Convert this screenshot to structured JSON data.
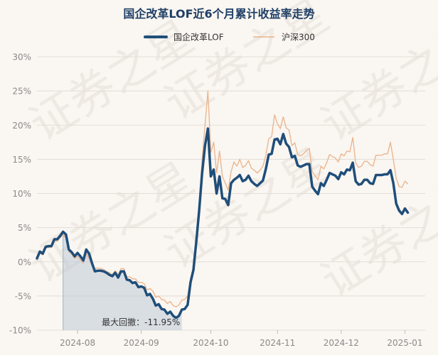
{
  "chart_data": {
    "type": "line",
    "title": "国企改革LOF近6个月累计收益率走势",
    "watermark": "证券之星",
    "ylim": [
      -10,
      30
    ],
    "yticks": [
      -10,
      -5,
      0,
      5,
      10,
      15,
      20,
      25,
      30
    ],
    "ytick_labels": [
      "-10%",
      "-5%",
      "0%",
      "5%",
      "10%",
      "15%",
      "20%",
      "25%",
      "30%"
    ],
    "xtick_labels": [
      "2024-08",
      "2024-09",
      "2024-10",
      "2024-11",
      "2024-12",
      "2025-01"
    ],
    "xtick_positions": [
      14,
      36,
      60,
      83,
      105,
      127
    ],
    "xlim": [
      0,
      134
    ],
    "legend_position": "top-center",
    "grid": true,
    "drawdown": {
      "label": "最大回撤：-11.95%",
      "start": 9,
      "end": 50
    },
    "series": [
      {
        "name": "国企改革LOF",
        "color": "#1f4e7a",
        "values": [
          0.5,
          1.5,
          1.2,
          2.2,
          2.3,
          2.3,
          3.3,
          3.3,
          3.8,
          4.4,
          4.0,
          1.8,
          1.4,
          0.8,
          1.3,
          0.8,
          0.2,
          1.8,
          1.2,
          -0.2,
          -1.4,
          -1.3,
          -1.3,
          -1.4,
          -1.6,
          -1.9,
          -2.1,
          -1.6,
          -2.3,
          -1.4,
          -1.4,
          -2.6,
          -2.7,
          -3.1,
          -3.0,
          -3.7,
          -3.6,
          -3.8,
          -4.9,
          -4.7,
          -5.4,
          -6.4,
          -6.2,
          -6.9,
          -7.0,
          -7.6,
          -7.3,
          -7.9,
          -8.2,
          -7.9,
          -7.0,
          -6.9,
          -6.3,
          -3.0,
          -1.2,
          3.0,
          7.6,
          13.0,
          17.0,
          19.5,
          12.5,
          13.5,
          10.0,
          12.5,
          9.3,
          9.2,
          8.3,
          11.5,
          12.0,
          12.3,
          12.7,
          11.8,
          12.0,
          12.6,
          11.8,
          11.4,
          11.1,
          11.5,
          11.9,
          13.6,
          15.7,
          15.8,
          17.9,
          18.0,
          17.2,
          18.7,
          17.3,
          16.8,
          15.3,
          15.5,
          14.1,
          13.9,
          14.1,
          14.3,
          14.3,
          11.0,
          10.4,
          9.9,
          11.5,
          11.1,
          12.0,
          13.0,
          12.8,
          12.6,
          12.1,
          13.1,
          12.8,
          13.5,
          13.4,
          14.5,
          11.8,
          11.3,
          11.4,
          12.0,
          12.0,
          11.5,
          11.4,
          12.7,
          12.7,
          12.7,
          12.8,
          12.8,
          13.4,
          11.5,
          8.5,
          7.5,
          7.0,
          7.8,
          7.2
        ]
      },
      {
        "name": "沪深300",
        "color": "#eab38a",
        "values": [
          0.3,
          1.3,
          1.0,
          2.0,
          2.1,
          2.1,
          3.0,
          3.0,
          3.5,
          4.0,
          3.5,
          1.5,
          1.1,
          0.5,
          0.8,
          0.3,
          -0.2,
          1.2,
          0.5,
          -0.6,
          -1.0,
          -0.9,
          -1.0,
          -1.1,
          -1.4,
          -1.6,
          -1.9,
          -1.3,
          -1.9,
          -1.0,
          -1.0,
          -2.2,
          -2.2,
          -2.5,
          -2.5,
          -3.0,
          -3.0,
          -3.2,
          -4.1,
          -3.9,
          -4.3,
          -5.2,
          -5.0,
          -5.5,
          -5.6,
          -6.1,
          -5.8,
          -6.4,
          -6.6,
          -6.3,
          -5.6,
          -5.5,
          -5.0,
          -2.4,
          -0.7,
          2.5,
          8.0,
          15.0,
          20.0,
          25.0,
          16.0,
          17.5,
          13.0,
          16.2,
          12.5,
          11.5,
          10.5,
          13.2,
          14.6,
          14.0,
          15.0,
          13.8,
          14.1,
          14.8,
          13.7,
          13.4,
          13.0,
          13.4,
          14.0,
          15.6,
          18.0,
          18.3,
          21.5,
          20.2,
          19.5,
          21.2,
          19.6,
          19.3,
          17.0,
          17.4,
          15.7,
          15.5,
          15.8,
          16.3,
          16.6,
          13.2,
          12.6,
          12.0,
          14.0,
          13.6,
          14.5,
          15.7,
          15.4,
          15.2,
          14.6,
          15.8,
          15.5,
          16.2,
          16.1,
          18.2,
          14.5,
          13.8,
          14.0,
          14.7,
          14.7,
          14.2,
          14.0,
          15.6,
          15.6,
          15.6,
          15.8,
          15.8,
          17.5,
          15.0,
          12.2,
          11.0,
          10.9,
          11.8,
          11.4
        ]
      }
    ]
  }
}
